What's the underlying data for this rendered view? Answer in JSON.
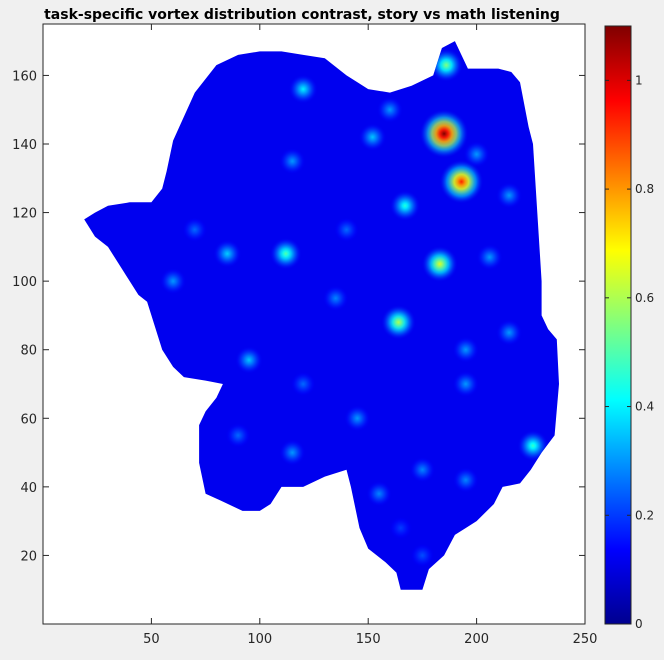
{
  "chart_data": {
    "type": "heatmap",
    "title": "task-specific vortex distribution contrast, story vs math listening",
    "xlabel": "",
    "ylabel": "",
    "xlim": [
      0,
      250
    ],
    "ylim": [
      0,
      175
    ],
    "x_ticks": [
      50,
      100,
      150,
      200,
      250
    ],
    "y_ticks": [
      20,
      40,
      60,
      80,
      100,
      120,
      140,
      160
    ],
    "colormap": "jet",
    "colorbar": {
      "range": [
        0,
        1.1
      ],
      "ticks": [
        0,
        0.2,
        0.4,
        0.6,
        0.8,
        1
      ],
      "tick_labels": [
        "0",
        "0.2",
        "0.4",
        "0.6",
        "0.8",
        "1"
      ]
    },
    "background_value": 0.12,
    "region_outline": [
      [
        19,
        118
      ],
      [
        24,
        120
      ],
      [
        30,
        122
      ],
      [
        40,
        123
      ],
      [
        50,
        123
      ],
      [
        55,
        127
      ],
      [
        57,
        132
      ],
      [
        60,
        141
      ],
      [
        70,
        155
      ],
      [
        80,
        163
      ],
      [
        90,
        166
      ],
      [
        100,
        167
      ],
      [
        110,
        167
      ],
      [
        120,
        166
      ],
      [
        130,
        165
      ],
      [
        140,
        160
      ],
      [
        145,
        158
      ],
      [
        150,
        156
      ],
      [
        160,
        155
      ],
      [
        170,
        157
      ],
      [
        180,
        160
      ],
      [
        184,
        168
      ],
      [
        190,
        170
      ],
      [
        196,
        162
      ],
      [
        205,
        162
      ],
      [
        210,
        162
      ],
      [
        216,
        161
      ],
      [
        220,
        158
      ],
      [
        224,
        145
      ],
      [
        226,
        140
      ],
      [
        228,
        120
      ],
      [
        230,
        100
      ],
      [
        230,
        90
      ],
      [
        233,
        86
      ],
      [
        237,
        83
      ],
      [
        238,
        70
      ],
      [
        236,
        55
      ],
      [
        230,
        50
      ],
      [
        225,
        45
      ],
      [
        220,
        41
      ],
      [
        212,
        40
      ],
      [
        208,
        35
      ],
      [
        200,
        30
      ],
      [
        195,
        28
      ],
      [
        190,
        26
      ],
      [
        185,
        20
      ],
      [
        178,
        16
      ],
      [
        175,
        10
      ],
      [
        165,
        10
      ],
      [
        163,
        15
      ],
      [
        158,
        18
      ],
      [
        150,
        22
      ],
      [
        146,
        28
      ],
      [
        142,
        40
      ],
      [
        140,
        45
      ],
      [
        130,
        43
      ],
      [
        120,
        40
      ],
      [
        110,
        40
      ],
      [
        105,
        35
      ],
      [
        100,
        33
      ],
      [
        92,
        33
      ],
      [
        82,
        36
      ],
      [
        75,
        38
      ],
      [
        72,
        47
      ],
      [
        72,
        58
      ],
      [
        75,
        62
      ],
      [
        80,
        66
      ],
      [
        83,
        70
      ],
      [
        75,
        71
      ],
      [
        65,
        72
      ],
      [
        60,
        75
      ],
      [
        55,
        80
      ],
      [
        50,
        90
      ],
      [
        48,
        94
      ],
      [
        44,
        96
      ],
      [
        37,
        103
      ],
      [
        30,
        110
      ],
      [
        24,
        113
      ],
      [
        19,
        118
      ]
    ],
    "hotspots": [
      {
        "x": 185,
        "y": 143,
        "value": 1.1
      },
      {
        "x": 193,
        "y": 129,
        "value": 0.93
      },
      {
        "x": 186,
        "y": 163,
        "value": 0.55
      },
      {
        "x": 183,
        "y": 105,
        "value": 0.65
      },
      {
        "x": 164,
        "y": 88,
        "value": 0.6
      },
      {
        "x": 112,
        "y": 108,
        "value": 0.5
      },
      {
        "x": 167,
        "y": 122,
        "value": 0.45
      },
      {
        "x": 120,
        "y": 156,
        "value": 0.4
      },
      {
        "x": 226,
        "y": 52,
        "value": 0.47
      },
      {
        "x": 206,
        "y": 107,
        "value": 0.3
      },
      {
        "x": 152,
        "y": 142,
        "value": 0.35
      },
      {
        "x": 200,
        "y": 137,
        "value": 0.3
      },
      {
        "x": 85,
        "y": 108,
        "value": 0.36
      },
      {
        "x": 115,
        "y": 135,
        "value": 0.3
      },
      {
        "x": 195,
        "y": 80,
        "value": 0.3
      },
      {
        "x": 95,
        "y": 77,
        "value": 0.35
      },
      {
        "x": 115,
        "y": 50,
        "value": 0.3
      },
      {
        "x": 145,
        "y": 60,
        "value": 0.3
      },
      {
        "x": 175,
        "y": 45,
        "value": 0.28
      },
      {
        "x": 60,
        "y": 100,
        "value": 0.3
      },
      {
        "x": 160,
        "y": 150,
        "value": 0.3
      },
      {
        "x": 215,
        "y": 125,
        "value": 0.3
      },
      {
        "x": 135,
        "y": 95,
        "value": 0.28
      },
      {
        "x": 215,
        "y": 85,
        "value": 0.3
      },
      {
        "x": 195,
        "y": 70,
        "value": 0.3
      },
      {
        "x": 155,
        "y": 38,
        "value": 0.28
      },
      {
        "x": 195,
        "y": 42,
        "value": 0.28
      },
      {
        "x": 120,
        "y": 70,
        "value": 0.25
      },
      {
        "x": 140,
        "y": 115,
        "value": 0.25
      },
      {
        "x": 90,
        "y": 55,
        "value": 0.25
      },
      {
        "x": 70,
        "y": 115,
        "value": 0.25
      },
      {
        "x": 175,
        "y": 20,
        "value": 0.22
      },
      {
        "x": 165,
        "y": 28,
        "value": 0.2
      }
    ]
  }
}
